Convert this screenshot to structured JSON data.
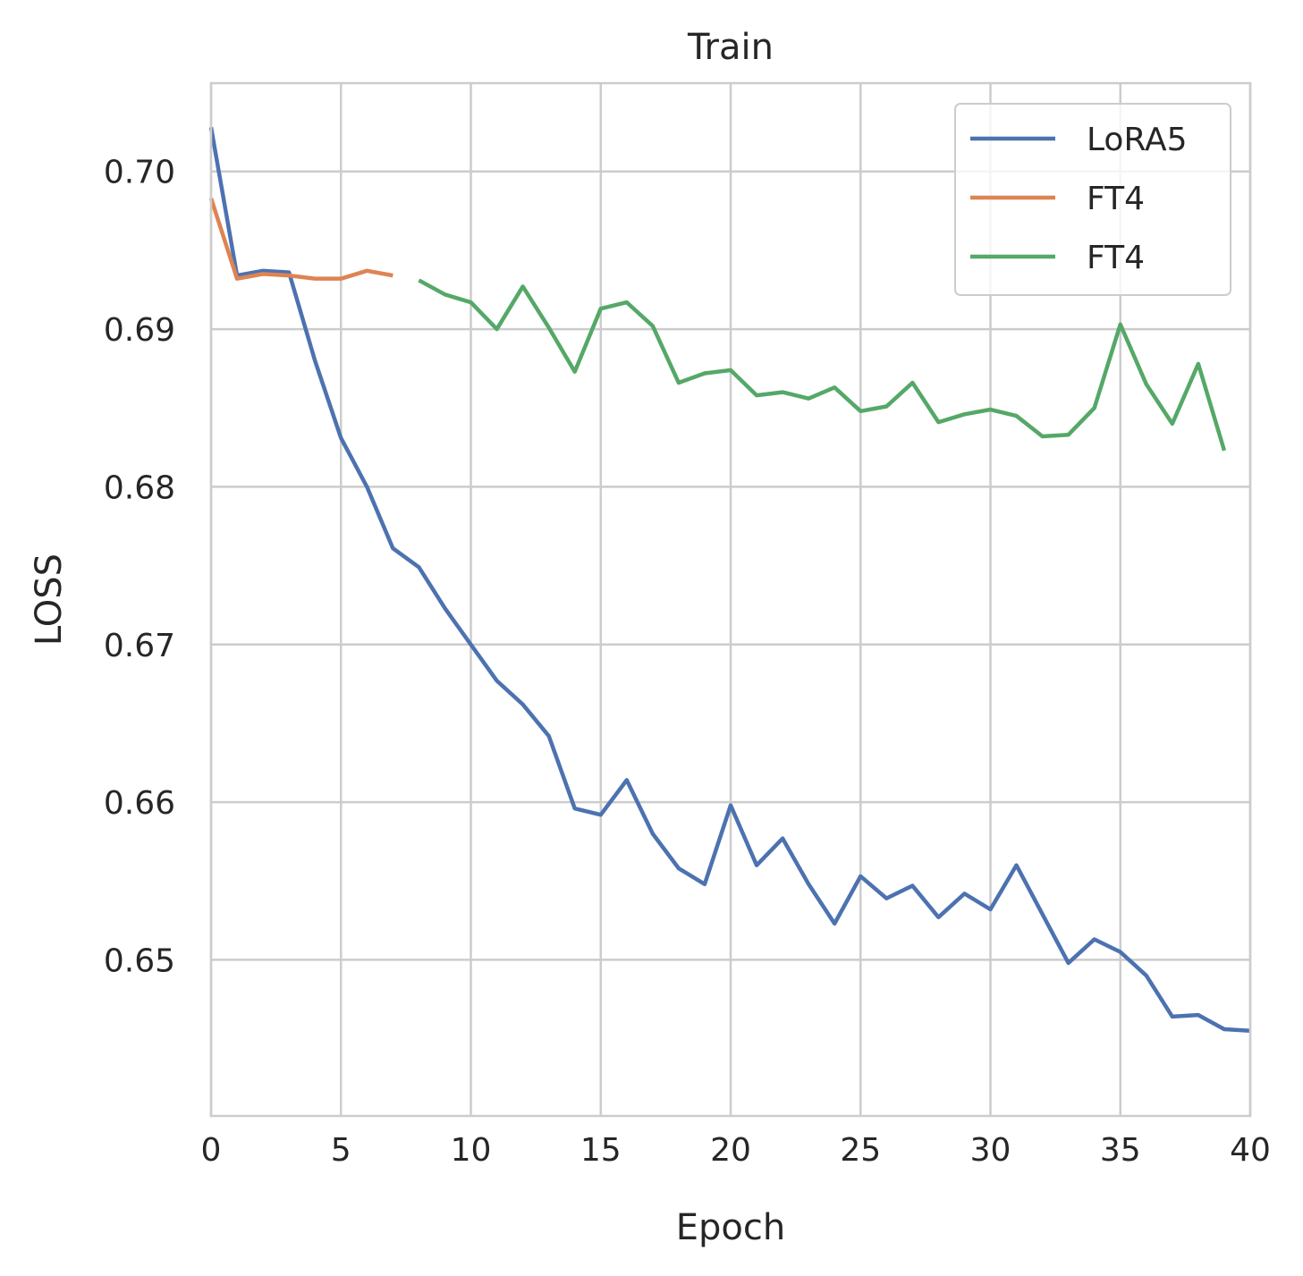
{
  "chart_data": {
    "type": "line",
    "title": "Train",
    "xlabel": "Epoch",
    "ylabel": "LOSS",
    "xlim": [
      0,
      40
    ],
    "ylim": [
      0.6401,
      0.7056
    ],
    "xticks": [
      0,
      5,
      10,
      15,
      20,
      25,
      30,
      35,
      40
    ],
    "xtick_labels": [
      "0",
      "5",
      "10",
      "15",
      "20",
      "25",
      "30",
      "35",
      "40"
    ],
    "yticks": [
      0.65,
      0.66,
      0.67,
      0.68,
      0.69,
      0.7
    ],
    "ytick_labels": [
      "0.65",
      "0.66",
      "0.67",
      "0.68",
      "0.69",
      "0.70"
    ],
    "grid": true,
    "legend_position": "top-right",
    "series": [
      {
        "name": "LoRA5",
        "color": "#4c72b0",
        "x": [
          0,
          1,
          2,
          3,
          4,
          5,
          6,
          7,
          8,
          9,
          10,
          11,
          12,
          13,
          14,
          15,
          16,
          17,
          18,
          19,
          20,
          21,
          22,
          23,
          24,
          25,
          26,
          27,
          28,
          29,
          30,
          31,
          32,
          33,
          34,
          35,
          36,
          37,
          38,
          39,
          40
        ],
        "y": [
          0.7028,
          0.6934,
          0.6937,
          0.6936,
          0.688,
          0.6831,
          0.68,
          0.6761,
          0.6749,
          0.6723,
          0.67,
          0.6677,
          0.6662,
          0.6642,
          0.6596,
          0.6592,
          0.6614,
          0.658,
          0.6558,
          0.6548,
          0.6598,
          0.656,
          0.6577,
          0.6548,
          0.6523,
          0.6553,
          0.6539,
          0.6547,
          0.6527,
          0.6542,
          0.6532,
          0.656,
          0.6529,
          0.6498,
          0.6513,
          0.6505,
          0.649,
          0.6464,
          0.6465,
          0.6456,
          0.6455
        ]
      },
      {
        "name": "FT4",
        "color": "#dd8452",
        "x": [
          0,
          1,
          2,
          3,
          4,
          5,
          6,
          7
        ],
        "y": [
          0.6983,
          0.6932,
          0.6935,
          0.6934,
          0.6932,
          0.6932,
          0.6937,
          0.6934
        ]
      },
      {
        "name": "FT4",
        "color": "#55a868",
        "x": [
          8,
          9,
          10,
          11,
          12,
          13,
          14,
          15,
          16,
          17,
          18,
          19,
          20,
          21,
          22,
          23,
          24,
          25,
          26,
          27,
          28,
          29,
          30,
          31,
          32,
          33,
          34,
          35,
          36,
          37,
          38,
          39
        ],
        "y": [
          0.6931,
          0.6922,
          0.6917,
          0.69,
          0.6927,
          0.6901,
          0.6873,
          0.6913,
          0.6917,
          0.6902,
          0.6866,
          0.6872,
          0.6874,
          0.6858,
          0.686,
          0.6856,
          0.6863,
          0.6848,
          0.6851,
          0.6866,
          0.6841,
          0.6846,
          0.6849,
          0.6845,
          0.6832,
          0.6833,
          0.685,
          0.6903,
          0.6865,
          0.684,
          0.6878,
          0.6823
        ]
      }
    ]
  }
}
